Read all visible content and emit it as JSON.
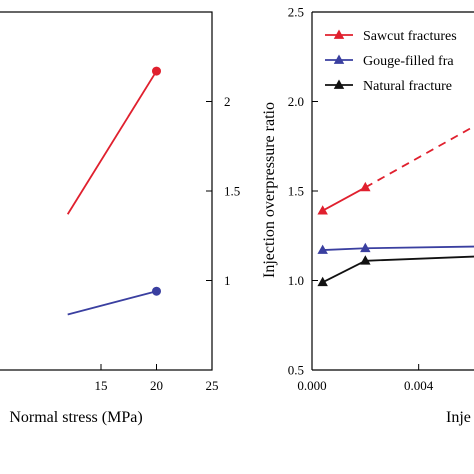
{
  "chart_data": [
    {
      "type": "line",
      "xlabel": "Normal stress (MPa)",
      "ylabel": "",
      "xlim": [
        5,
        25
      ],
      "ylim": [
        0.5,
        2.5
      ],
      "x_ticks": [
        15,
        20,
        25
      ],
      "y_ticks": [
        1.0,
        1.5,
        2.0
      ],
      "y_tick_labels": [
        "1",
        "1.5",
        "2"
      ],
      "series": [
        {
          "color": "#e0202e",
          "marker": "circle",
          "points": [
            [
              12.0,
              1.37
            ],
            [
              20.0,
              2.17
            ]
          ]
        },
        {
          "color": "#3a3fa0",
          "marker": "circle",
          "points": [
            [
              12.0,
              0.81
            ],
            [
              20.0,
              0.94
            ]
          ]
        }
      ]
    },
    {
      "type": "line",
      "xlabel": "Inje",
      "ylabel": "Injection overpressure ratio",
      "xlim": [
        0.0,
        0.0063
      ],
      "ylim": [
        0.5,
        2.5
      ],
      "x_ticks": [
        0.0,
        0.004
      ],
      "x_tick_labels": [
        "0.000",
        "0.004"
      ],
      "y_ticks": [
        0.5,
        1.0,
        1.5,
        2.0,
        2.5
      ],
      "y_tick_labels": [
        "0.5",
        "1.0",
        "1.5",
        "2.0",
        "2.5"
      ],
      "legend": {
        "position": "top-right"
      },
      "series": [
        {
          "name": "Sawcut fractures",
          "color": "#e0202e",
          "marker": "triangle",
          "points": [
            [
              0.0004,
              1.39
            ],
            [
              0.002,
              1.52
            ]
          ],
          "dashed_to": [
            0.0063,
            1.88
          ]
        },
        {
          "name": "Gouge-filled fra",
          "color": "#3a3fa0",
          "marker": "triangle",
          "points": [
            [
              0.0004,
              1.17
            ],
            [
              0.002,
              1.18
            ]
          ],
          "solid_to": [
            0.0063,
            1.19
          ]
        },
        {
          "name": "Natural fracture",
          "color": "#111111",
          "marker": "triangle",
          "points": [
            [
              0.0004,
              0.99
            ],
            [
              0.002,
              1.11
            ]
          ],
          "solid_to": [
            0.0063,
            1.135
          ]
        }
      ]
    }
  ]
}
